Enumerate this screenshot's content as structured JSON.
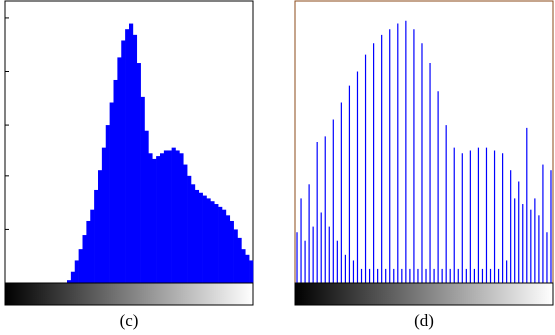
{
  "chart_data": [
    {
      "type": "bar",
      "caption": "(c)",
      "color": "#0000ff",
      "ylim": [
        0,
        100
      ],
      "yticks": [
        19,
        38,
        56,
        75,
        94
      ],
      "values": [
        0,
        0,
        0,
        0,
        0,
        0,
        0,
        0,
        0,
        0,
        0,
        0,
        0,
        0,
        0,
        0,
        1,
        4,
        8,
        12,
        17,
        22,
        26,
        33,
        40,
        48,
        56,
        64,
        72,
        80,
        86,
        90,
        92,
        88,
        78,
        66,
        54,
        46,
        44,
        45,
        46,
        47,
        47,
        48,
        47,
        46,
        42,
        38,
        35,
        33,
        32,
        31,
        30,
        29,
        28,
        27,
        26,
        24,
        22,
        19,
        16,
        12,
        10,
        8
      ]
    },
    {
      "type": "stem",
      "caption": "(d)",
      "color": "#0000ff",
      "ylim": [
        0,
        100
      ],
      "values": [
        18,
        30,
        15,
        35,
        20,
        50,
        25,
        52,
        20,
        58,
        15,
        64,
        10,
        70,
        8,
        75,
        5,
        81,
        5,
        85,
        5,
        88,
        5,
        90,
        5,
        92,
        5,
        93,
        5,
        90,
        5,
        85,
        5,
        78,
        5,
        68,
        5,
        56,
        5,
        48,
        5,
        46,
        5,
        47,
        5,
        48,
        5,
        48,
        5,
        47,
        5,
        46,
        8,
        40,
        30,
        36,
        28,
        55,
        26,
        30,
        24,
        42,
        18,
        40
      ]
    }
  ]
}
